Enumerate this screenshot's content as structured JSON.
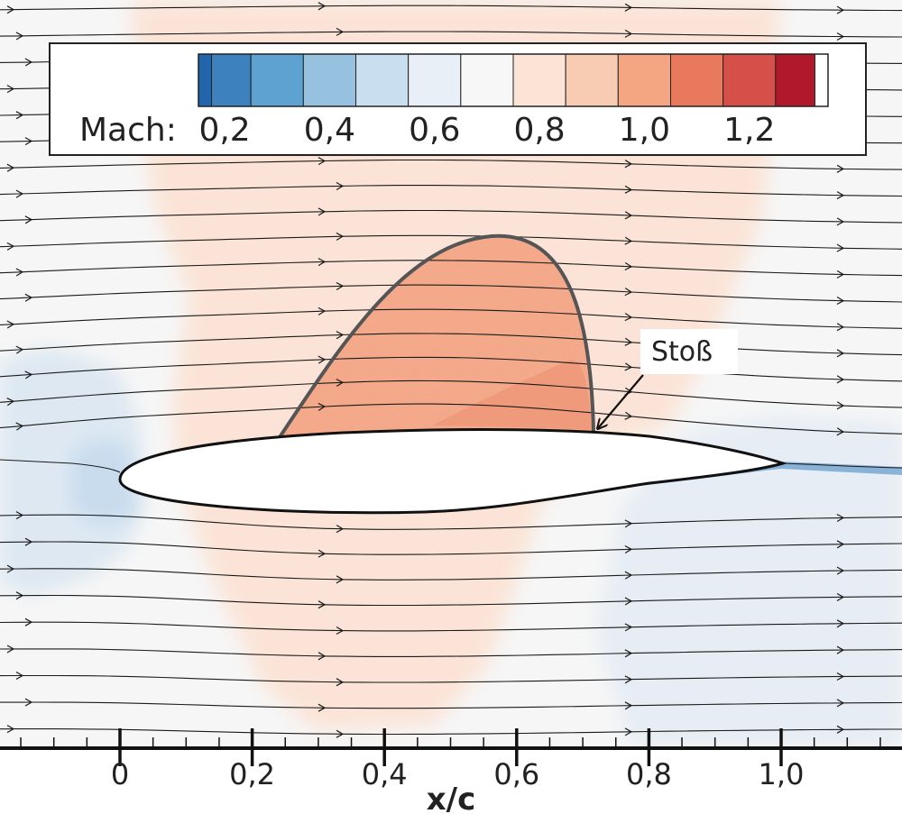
{
  "chart_data": {
    "type": "contour",
    "variable": "Mach",
    "xlabel": "x/c",
    "x_ticks": [
      "0",
      "0,2",
      "0,4",
      "0,6",
      "0,8",
      "1,0"
    ],
    "x_tick_values": [
      0,
      0.2,
      0.4,
      0.6,
      0.8,
      1.0
    ],
    "xlim": [
      -0.18,
      1.18
    ],
    "colorbar": {
      "label": "Mach:",
      "ticks": [
        "0,2",
        "0,4",
        "0,6",
        "0,8",
        "1,0",
        "1,2"
      ],
      "tick_values": [
        0.2,
        0.4,
        0.6,
        0.8,
        1.0,
        1.2
      ],
      "range": [
        0.15,
        1.35
      ],
      "levels": 12,
      "colors": [
        "#2166ac",
        "#3d82bf",
        "#5ea2d1",
        "#96c2df",
        "#c9dff0",
        "#e8eff6",
        "#f7f7f7",
        "#fbe3d6",
        "#f8cbb3",
        "#f4a582",
        "#e9795c",
        "#d6504a",
        "#b2182b"
      ]
    },
    "annotations": [
      {
        "text": "Stoß",
        "target_x": 0.72
      }
    ],
    "supersonic_region": {
      "from_x": 0.24,
      "to_x": 0.72,
      "peak_x": 0.56
    }
  }
}
